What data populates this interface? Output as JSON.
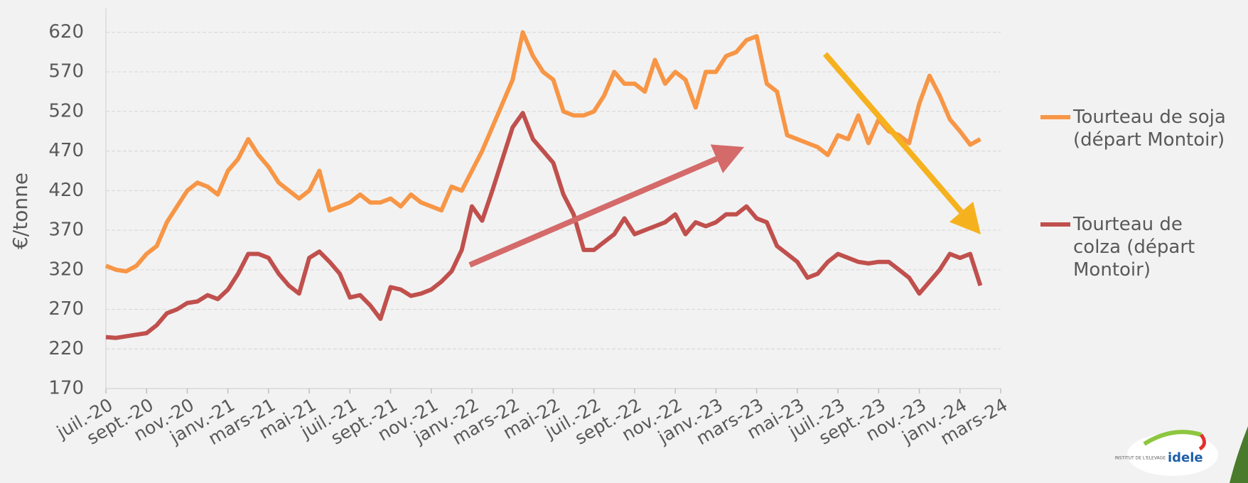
{
  "chart_data": {
    "type": "line",
    "categories": [
      "juil.-20",
      null,
      null,
      null,
      "sept.-20",
      null,
      null,
      null,
      "nov.-20",
      null,
      null,
      null,
      "janv.-21",
      null,
      null,
      null,
      "mars-21",
      null,
      null,
      null,
      "mai-21",
      null,
      null,
      null,
      "juil.-21",
      null,
      null,
      null,
      "sept.-21",
      null,
      null,
      null,
      "nov.-21",
      null,
      null,
      null,
      "janv.-22",
      null,
      null,
      null,
      "mars-22",
      null,
      null,
      null,
      "mai-22",
      null,
      null,
      null,
      "juil.-22",
      null,
      null,
      null,
      "sept.-22",
      null,
      null,
      null,
      "nov.-22",
      null,
      null,
      null,
      "janv.-23",
      null,
      null,
      null,
      "mars-23",
      null,
      null,
      null,
      "mai-23",
      null,
      null,
      null,
      "juil.-23",
      null,
      null,
      null,
      "sept.-23",
      null,
      null,
      null,
      "nov.-23",
      null,
      null,
      null,
      "janv.-24",
      null,
      null,
      null,
      "mars-24"
    ],
    "series": [
      {
        "name": "Tourteau de soja (départ Montoir)",
        "color": "#f79646",
        "values": [
          325,
          320,
          318,
          325,
          340,
          350,
          380,
          400,
          420,
          430,
          425,
          415,
          445,
          460,
          485,
          465,
          450,
          430,
          420,
          410,
          420,
          445,
          395,
          400,
          405,
          415,
          405,
          405,
          410,
          400,
          415,
          405,
          400,
          395,
          425,
          420,
          445,
          470,
          500,
          530,
          560,
          620,
          590,
          570,
          560,
          520,
          515,
          515,
          520,
          540,
          570,
          555,
          555,
          545,
          585,
          555,
          570,
          560,
          525,
          570,
          570,
          590,
          595,
          610,
          615,
          555,
          545,
          490,
          485,
          480,
          475,
          465,
          490,
          485,
          515,
          480,
          510,
          495,
          490,
          480,
          530,
          565,
          540,
          510,
          495,
          478,
          485,
          null,
          null
        ]
      },
      {
        "name": "Tourteau de colza (départ Montoir)",
        "color": "#c0504d",
        "values": [
          235,
          234,
          236,
          238,
          240,
          250,
          265,
          270,
          278,
          280,
          288,
          283,
          295,
          315,
          340,
          340,
          335,
          315,
          300,
          290,
          335,
          343,
          330,
          315,
          285,
          288,
          275,
          258,
          298,
          295,
          287,
          290,
          295,
          305,
          318,
          345,
          400,
          382,
          420,
          460,
          500,
          518,
          485,
          470,
          455,
          415,
          390,
          345,
          345,
          355,
          365,
          385,
          365,
          370,
          375,
          380,
          390,
          365,
          380,
          375,
          380,
          390,
          390,
          400,
          385,
          380,
          350,
          340,
          330,
          310,
          315,
          330,
          340,
          335,
          330,
          328,
          330,
          330,
          320,
          310,
          290,
          305,
          320,
          340,
          335,
          340,
          300,
          null,
          null
        ]
      }
    ],
    "y_label": "€/tonne",
    "ylim": [
      170,
      650
    ],
    "yticks": [
      170,
      220,
      270,
      320,
      370,
      420,
      470,
      520,
      570,
      620
    ],
    "grid": true
  },
  "logo": {
    "small": "INSTITUT DE L'ELEVAGE",
    "name": "idele"
  }
}
